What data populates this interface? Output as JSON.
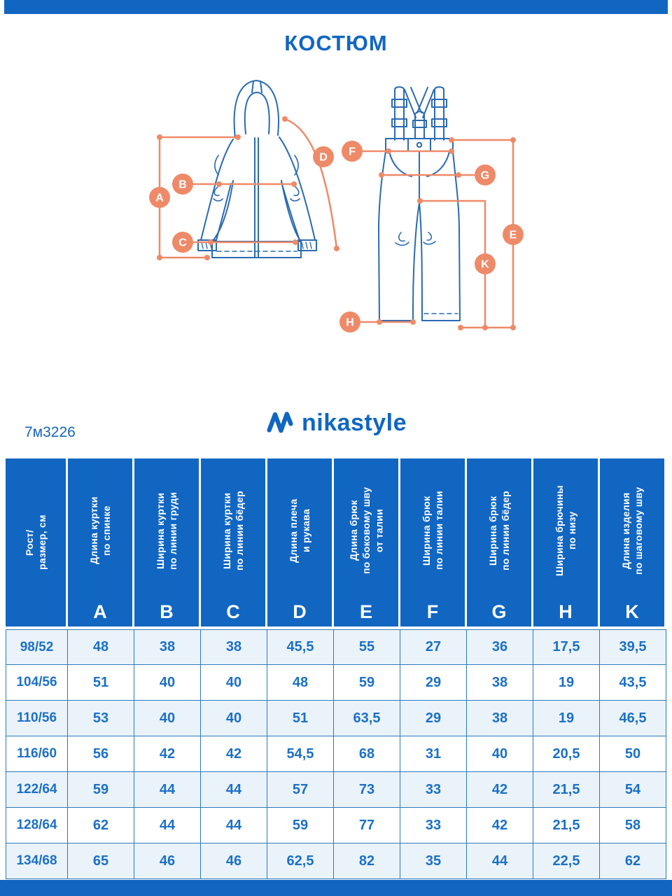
{
  "header": {
    "title": "КОСТЮМ"
  },
  "brand": {
    "name": "nikastyle",
    "article": "7м3226"
  },
  "colors": {
    "primary_blue": "#1166C2",
    "accent_orange": "#EE8A68",
    "drawing_blue": "#2A6AB2",
    "row_alt_blue": "#EAF3FA",
    "cell_border_blue": "#2B79BD",
    "value_text_blue": "#1C70C6"
  },
  "diagram": {
    "markers": [
      "A",
      "B",
      "C",
      "D",
      "E",
      "F",
      "G",
      "H",
      "K"
    ]
  },
  "table": {
    "size_header": "Рост/\nразмер, см",
    "columns": [
      {
        "letter": "A",
        "label": "Длина куртки\nпо спинке"
      },
      {
        "letter": "B",
        "label": "Ширина куртки\nпо линии груди"
      },
      {
        "letter": "C",
        "label": "Ширина куртки\nпо линии бёдер"
      },
      {
        "letter": "D",
        "label": "Длина плеча\nи рукава"
      },
      {
        "letter": "E",
        "label": "Длина брюк\nпо боковому шву\nот талии"
      },
      {
        "letter": "F",
        "label": "Ширина брюк\nпо линии талии"
      },
      {
        "letter": "G",
        "label": "Ширина брюк\nпо линии бёдер"
      },
      {
        "letter": "H",
        "label": "Ширина брючины\nпо низу"
      },
      {
        "letter": "K",
        "label": "Длина изделия\nпо шаговому шву"
      }
    ],
    "rows": [
      {
        "size": "98/52",
        "values": [
          "48",
          "38",
          "38",
          "45,5",
          "55",
          "27",
          "36",
          "17,5",
          "39,5"
        ]
      },
      {
        "size": "104/56",
        "values": [
          "51",
          "40",
          "40",
          "48",
          "59",
          "29",
          "38",
          "19",
          "43,5"
        ]
      },
      {
        "size": "110/56",
        "values": [
          "53",
          "40",
          "40",
          "51",
          "63,5",
          "29",
          "38",
          "19",
          "46,5"
        ]
      },
      {
        "size": "116/60",
        "values": [
          "56",
          "42",
          "42",
          "54,5",
          "68",
          "31",
          "40",
          "20,5",
          "50"
        ]
      },
      {
        "size": "122/64",
        "values": [
          "59",
          "44",
          "44",
          "57",
          "73",
          "33",
          "42",
          "21,5",
          "54"
        ]
      },
      {
        "size": "128/64",
        "values": [
          "62",
          "44",
          "44",
          "59",
          "77",
          "33",
          "42",
          "21,5",
          "58"
        ]
      },
      {
        "size": "134/68",
        "values": [
          "65",
          "46",
          "46",
          "62,5",
          "82",
          "35",
          "44",
          "22,5",
          "62"
        ]
      }
    ]
  }
}
